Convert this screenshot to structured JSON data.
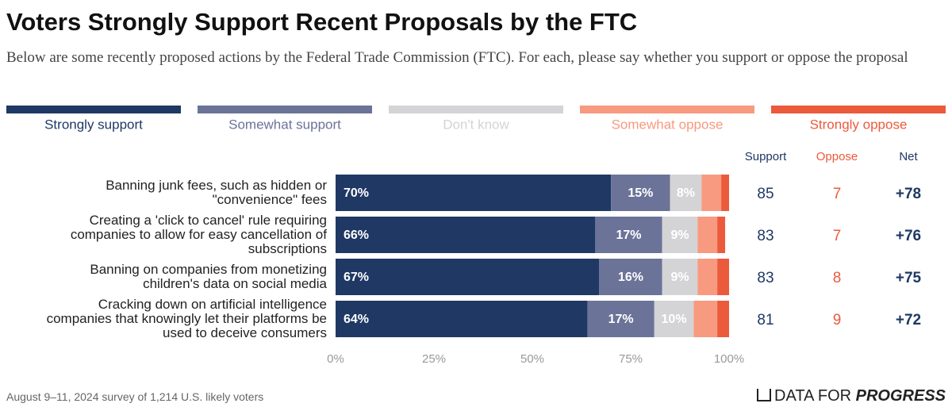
{
  "chart_data": {
    "type": "stacked_bar_horizontal",
    "title": "Voters Strongly Support Recent Proposals by the FTC",
    "subtitle": "Below are some recently proposed actions by the Federal Trade Commission (FTC). For each, please say whether you support or oppose the proposal",
    "categories": [
      "Banning junk fees, such as hidden or\n\"convenience\" fees",
      "Creating a 'click to cancel' rule requiring\ncompanies to allow for easy cancellation of\nsubscriptions",
      "Banning on companies from monetizing\nchildren's data on social media",
      "Cracking down on artificial intelligence\ncompanies that knowingly let their platforms be\nused to deceive consumers"
    ],
    "series": [
      {
        "name": "Strongly support",
        "color": "#1f3864",
        "values": [
          70,
          66,
          67,
          64
        ],
        "value_labels": [
          "70%",
          "66%",
          "67%",
          "64%"
        ]
      },
      {
        "name": "Somewhat support",
        "color": "#6b7398",
        "values": [
          15,
          17,
          16,
          17
        ],
        "value_labels": [
          "15%",
          "17%",
          "16%",
          "17%"
        ]
      },
      {
        "name": "Don't know",
        "color": "#d4d4d6",
        "values": [
          8,
          9,
          9,
          10
        ],
        "value_labels": [
          "8%",
          "9%",
          "9%",
          "10%"
        ]
      },
      {
        "name": "Somewhat oppose",
        "color": "#f79a80",
        "values": [
          5,
          5,
          5,
          6
        ]
      },
      {
        "name": "Strongly oppose",
        "color": "#ec5a3c",
        "values": [
          2,
          2,
          3,
          3
        ]
      }
    ],
    "xlim": [
      0,
      100
    ],
    "xticks": [
      {
        "value": 0,
        "label": "0%"
      },
      {
        "value": 25,
        "label": "25%"
      },
      {
        "value": 50,
        "label": "50%"
      },
      {
        "value": 75,
        "label": "75%"
      },
      {
        "value": 100,
        "label": "100%"
      }
    ],
    "columns": [
      {
        "name": "Support",
        "color": "#1f3864",
        "values": [
          85,
          83,
          83,
          81
        ]
      },
      {
        "name": "Oppose",
        "color": "#ec5a3c",
        "values": [
          7,
          7,
          8,
          9
        ]
      },
      {
        "name": "Net",
        "color": "#1f3864",
        "values": [
          78,
          76,
          75,
          72
        ],
        "value_labels": [
          "+78",
          "+76",
          "+75",
          "+72"
        ]
      }
    ],
    "source": "August 9–11, 2024 survey of 1,214 U.S. likely voters",
    "logo": [
      "DATA FOR",
      "PROGRESS"
    ]
  }
}
